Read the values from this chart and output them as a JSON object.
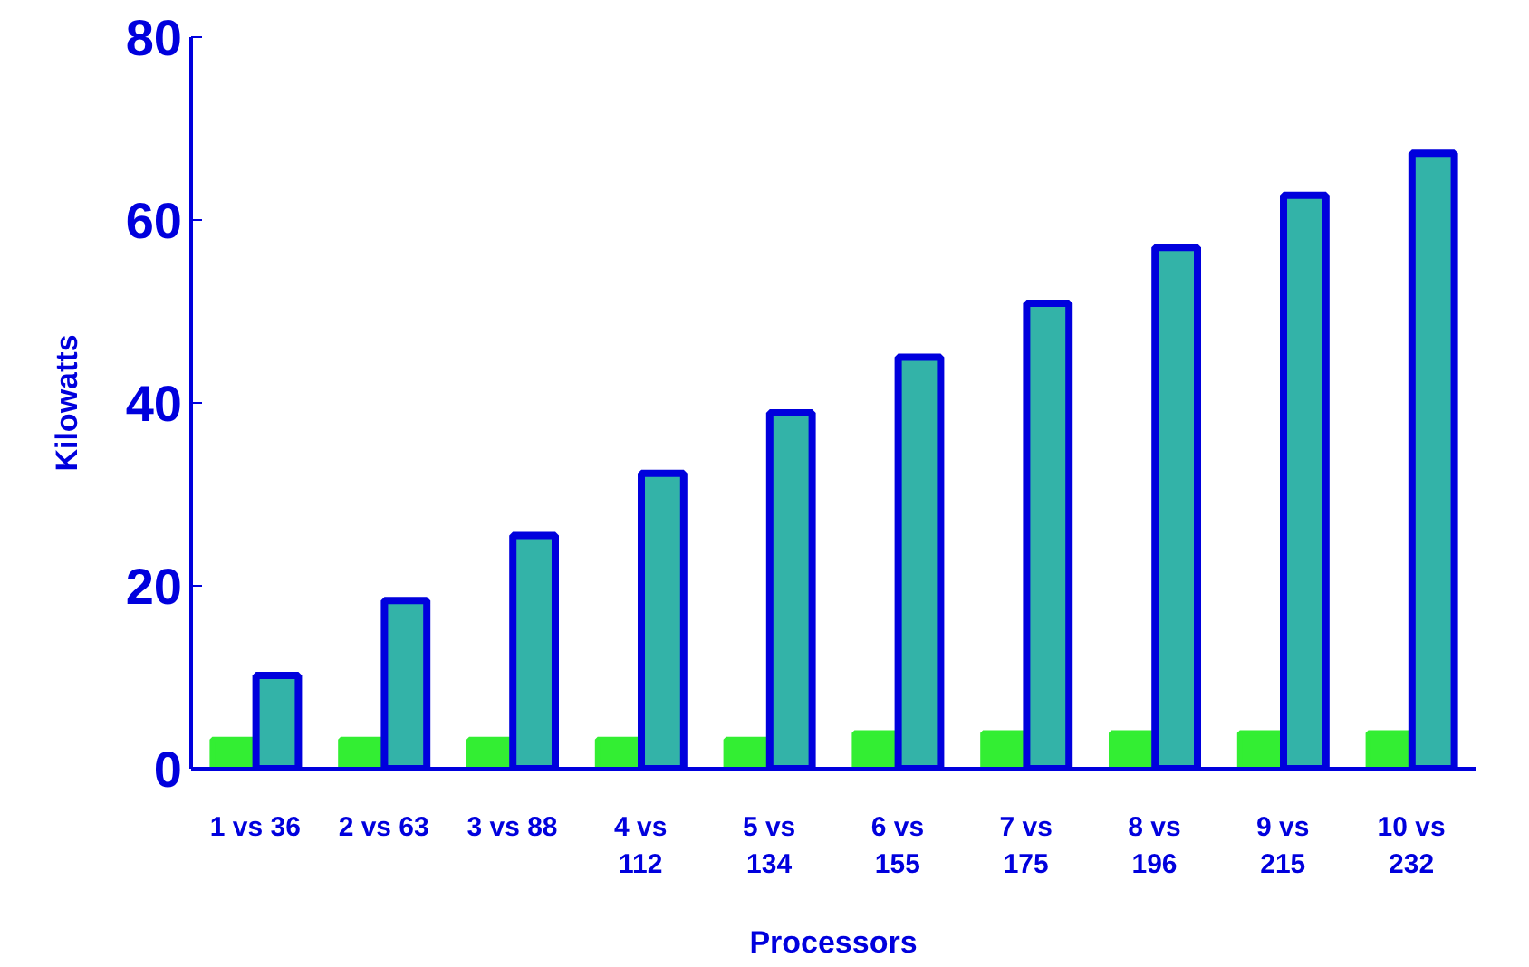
{
  "chart_data": {
    "type": "bar",
    "xlabel": "Processors",
    "ylabel": "Kilowatts",
    "categories": [
      "1 vs 36",
      "2 vs 63",
      "3 vs 88",
      "4 vs 112",
      "5 vs 134",
      "6 vs 155",
      "7 vs 175",
      "8 vs 196",
      "9 vs 215",
      "10 vs 232"
    ],
    "series": [
      {
        "color": "#33ee33",
        "values": [
          3.2,
          3.2,
          3.2,
          3.2,
          3.2,
          3.9,
          3.9,
          3.9,
          3.9,
          3.9
        ]
      },
      {
        "color": "#33b3a8",
        "values": [
          10.2,
          18.4,
          25.5,
          32.3,
          38.9,
          45,
          50.9,
          57,
          62.7,
          67.3
        ]
      }
    ],
    "ylim": [
      0,
      80
    ],
    "yticks": [
      0,
      20,
      40,
      60,
      80
    ],
    "grid": false
  }
}
